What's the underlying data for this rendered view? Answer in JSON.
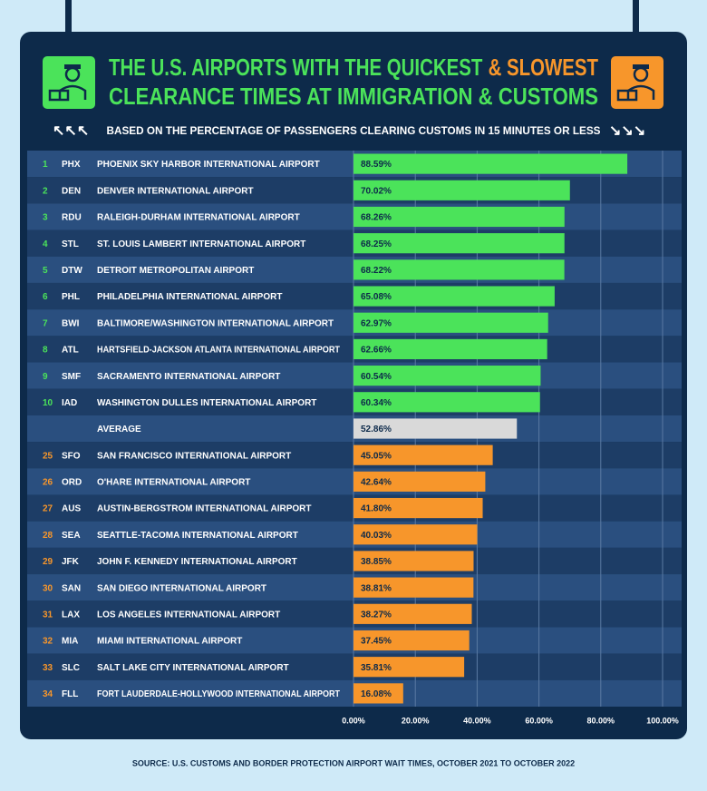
{
  "chart_data": {
    "type": "bar",
    "title_start": "THE U.S. AIRPORTS WITH THE QUICKEST",
    "title_highlight": "& SLOWEST",
    "title_line2": "CLEARANCE TIMES AT IMMIGRATION & CUSTOMS",
    "subtitle": "BASED ON THE PERCENTAGE OF PASSENGERS CLEARING CUSTOMS IN 15 MINUTES OR LESS",
    "source": "SOURCE: U.S. CUSTOMS AND BORDER PROTECTION AIRPORT WAIT TIMES, OCTOBER 2021 TO OCTOBER 2022",
    "ranks": [
      1,
      2,
      3,
      4,
      5,
      6,
      7,
      8,
      9,
      10,
      null,
      25,
      26,
      27,
      28,
      29,
      30,
      31,
      32,
      33,
      34
    ],
    "codes": [
      "PHX",
      "DEN",
      "RDU",
      "STL",
      "DTW",
      "PHL",
      "BWI",
      "ATL",
      "SMF",
      "IAD",
      null,
      "SFO",
      "ORD",
      "AUS",
      "SEA",
      "JFK",
      "SAN",
      "LAX",
      "MIA",
      "SLC",
      "FLL"
    ],
    "categories": [
      "PHOENIX SKY HARBOR INTERNATIONAL AIRPORT",
      "DENVER INTERNATIONAL AIRPORT",
      "RALEIGH-DURHAM INTERNATIONAL AIRPORT",
      "ST. LOUIS LAMBERT INTERNATIONAL AIRPORT",
      "DETROIT METROPOLITAN AIRPORT",
      "PHILADELPHIA INTERNATIONAL AIRPORT",
      "BALTIMORE/WASHINGTON INTERNATIONAL AIRPORT",
      "HARTSFIELD-JACKSON ATLANTA INTERNATIONAL AIRPORT",
      "SACRAMENTO INTERNATIONAL AIRPORT",
      "WASHINGTON DULLES INTERNATIONAL AIRPORT",
      "AVERAGE",
      "SAN FRANCISCO INTERNATIONAL AIRPORT",
      "O'HARE INTERNATIONAL AIRPORT",
      "AUSTIN-BERGSTROM INTERNATIONAL AIRPORT",
      "SEATTLE-TACOMA INTERNATIONAL AIRPORT",
      "JOHN F. KENNEDY INTERNATIONAL AIRPORT",
      "SAN DIEGO INTERNATIONAL AIRPORT",
      "LOS ANGELES INTERNATIONAL AIRPORT",
      "MIAMI INTERNATIONAL AIRPORT",
      "SALT LAKE CITY INTERNATIONAL AIRPORT",
      "FORT LAUDERDALE-HOLLYWOOD INTERNATIONAL AIRPORT"
    ],
    "values": [
      88.59,
      70.02,
      68.26,
      68.25,
      68.22,
      65.08,
      62.97,
      62.66,
      60.54,
      60.34,
      52.86,
      45.05,
      42.64,
      41.8,
      40.03,
      38.85,
      38.81,
      38.27,
      37.45,
      35.81,
      16.08
    ],
    "value_labels": [
      "88.59%",
      "70.02%",
      "68.26%",
      "68.25%",
      "68.22%",
      "65.08%",
      "62.97%",
      "62.66%",
      "60.54%",
      "60.34%",
      "52.86%",
      "45.05%",
      "42.64%",
      "41.80%",
      "40.03%",
      "38.85%",
      "38.81%",
      "38.27%",
      "37.45%",
      "35.81%",
      "16.08%"
    ],
    "colors": [
      "#4be35a",
      "#4be35a",
      "#4be35a",
      "#4be35a",
      "#4be35a",
      "#4be35a",
      "#4be35a",
      "#4be35a",
      "#4be35a",
      "#4be35a",
      "#d9d9d9",
      "#f7962b",
      "#f7962b",
      "#f7962b",
      "#f7962b",
      "#f7962b",
      "#f7962b",
      "#f7962b",
      "#f7962b",
      "#f7962b",
      "#f7962b"
    ],
    "xlim": [
      0,
      100
    ],
    "xticks": [
      {
        "value": 0,
        "label": "0.00%"
      },
      {
        "value": 20,
        "label": "20.00%"
      },
      {
        "value": 40,
        "label": "40.00%"
      },
      {
        "value": 60,
        "label": "60.00%"
      },
      {
        "value": 80,
        "label": "80.00%"
      },
      {
        "value": 100,
        "label": "100.00%"
      }
    ],
    "grid": true
  }
}
